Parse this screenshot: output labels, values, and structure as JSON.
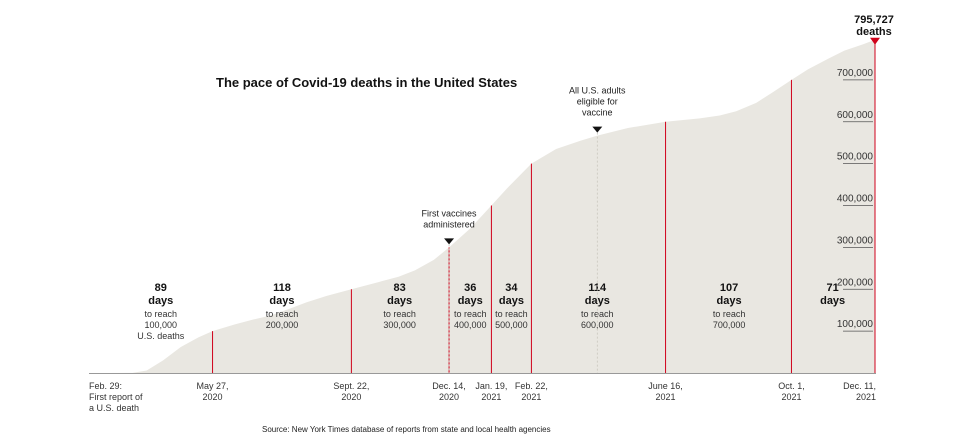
{
  "chart_data": {
    "type": "area",
    "title": "The pace of Covid-19 deaths in the United States",
    "source": "Source: New York Times database of reports from state and local health agencies",
    "x_domain": [
      "2020-02-29",
      "2021-12-11"
    ],
    "ylim": [
      0,
      800000
    ],
    "y_ticks": [
      {
        "value": 100000,
        "label": "100,000"
      },
      {
        "value": 200000,
        "label": "200,000"
      },
      {
        "value": 300000,
        "label": "300,000"
      },
      {
        "value": 400000,
        "label": "400,000"
      },
      {
        "value": 500000,
        "label": "500,000"
      },
      {
        "value": 600000,
        "label": "600,000"
      },
      {
        "value": 700000,
        "label": "700,000"
      }
    ],
    "series": [
      {
        "values": [
          {
            "x": "2020-02-29",
            "y": 0
          },
          {
            "x": "2020-03-20",
            "y": 300
          },
          {
            "x": "2020-04-01",
            "y": 6000
          },
          {
            "x": "2020-04-15",
            "y": 30000
          },
          {
            "x": "2020-04-30",
            "y": 62000
          },
          {
            "x": "2020-05-15",
            "y": 85000
          },
          {
            "x": "2020-05-27",
            "y": 100000
          },
          {
            "x": "2020-06-15",
            "y": 116000
          },
          {
            "x": "2020-07-01",
            "y": 128000
          },
          {
            "x": "2020-07-15",
            "y": 137000
          },
          {
            "x": "2020-08-01",
            "y": 154000
          },
          {
            "x": "2020-08-15",
            "y": 169000
          },
          {
            "x": "2020-09-01",
            "y": 184000
          },
          {
            "x": "2020-09-22",
            "y": 200000
          },
          {
            "x": "2020-10-15",
            "y": 217000
          },
          {
            "x": "2020-11-01",
            "y": 230000
          },
          {
            "x": "2020-11-15",
            "y": 245000
          },
          {
            "x": "2020-12-01",
            "y": 270000
          },
          {
            "x": "2020-12-14",
            "y": 300000
          },
          {
            "x": "2021-01-01",
            "y": 345000
          },
          {
            "x": "2021-01-19",
            "y": 400000
          },
          {
            "x": "2021-02-01",
            "y": 440000
          },
          {
            "x": "2021-02-22",
            "y": 500000
          },
          {
            "x": "2021-03-15",
            "y": 535000
          },
          {
            "x": "2021-04-05",
            "y": 555000
          },
          {
            "x": "2021-04-19",
            "y": 567000
          },
          {
            "x": "2021-05-15",
            "y": 585000
          },
          {
            "x": "2021-06-16",
            "y": 600000
          },
          {
            "x": "2021-07-15",
            "y": 608000
          },
          {
            "x": "2021-08-01",
            "y": 615000
          },
          {
            "x": "2021-08-15",
            "y": 625000
          },
          {
            "x": "2021-09-01",
            "y": 645000
          },
          {
            "x": "2021-09-15",
            "y": 670000
          },
          {
            "x": "2021-10-01",
            "y": 700000
          },
          {
            "x": "2021-10-15",
            "y": 725000
          },
          {
            "x": "2021-11-01",
            "y": 750000
          },
          {
            "x": "2021-11-15",
            "y": 770000
          },
          {
            "x": "2021-12-01",
            "y": 785000
          },
          {
            "x": "2021-12-11",
            "y": 795727
          }
        ]
      }
    ],
    "milestones": [
      {
        "date": "2020-02-29",
        "line": false,
        "date_label": [
          "Feb. 29:",
          "First report of",
          "a U.S. death"
        ]
      },
      {
        "date": "2020-05-27",
        "line": true,
        "value": 100000,
        "date_label": [
          "May 27,",
          "2020"
        ]
      },
      {
        "date": "2020-09-22",
        "line": true,
        "value": 200000,
        "date_label": [
          "Sept. 22,",
          "2020"
        ]
      },
      {
        "date": "2020-12-14",
        "line": true,
        "value": 300000,
        "date_label": [
          "Dec. 14,",
          "2020"
        ]
      },
      {
        "date": "2021-01-19",
        "line": true,
        "value": 400000,
        "date_label": [
          "Jan. 19,",
          "2021"
        ]
      },
      {
        "date": "2021-02-22",
        "line": true,
        "value": 500000,
        "date_label": [
          "Feb. 22,",
          "2021"
        ]
      },
      {
        "date": "2021-06-16",
        "line": true,
        "value": 600000,
        "date_label": [
          "June 16,",
          "2021"
        ]
      },
      {
        "date": "2021-10-01",
        "line": true,
        "value": 700000,
        "date_label": [
          "Oct. 1,",
          "2021"
        ]
      },
      {
        "date": "2021-12-11",
        "line": true,
        "value": 795727,
        "date_label": [
          "Dec. 11,",
          "2021"
        ]
      }
    ],
    "intervals": [
      {
        "days": "89",
        "days_word": "days",
        "sub": [
          "to reach",
          "100,000",
          "U.S. deaths"
        ],
        "center": "2020-04-13"
      },
      {
        "days": "118",
        "days_word": "days",
        "sub": [
          "to reach",
          "200,000"
        ],
        "center": "2020-07-25"
      },
      {
        "days": "83",
        "days_word": "days",
        "sub": [
          "to reach",
          "300,000"
        ],
        "center": "2020-11-02"
      },
      {
        "days": "36",
        "days_word": "days",
        "sub": [
          "to reach",
          "400,000"
        ],
        "center": "2021-01-01"
      },
      {
        "days": "34",
        "days_word": "days",
        "sub": [
          "to reach",
          "500,000"
        ],
        "center": "2021-02-05"
      },
      {
        "days": "114",
        "days_word": "days",
        "sub": [
          "to reach",
          "600,000"
        ],
        "center": "2021-04-19"
      },
      {
        "days": "107",
        "days_word": "days",
        "sub": [
          "to reach",
          "700,000"
        ],
        "center": "2021-08-09"
      },
      {
        "days": "71",
        "days_word": "days",
        "sub": [],
        "center": "2021-11-05"
      }
    ],
    "annotations": [
      {
        "date": "2020-12-14",
        "value": 300000,
        "lines": [
          "First vaccines",
          "administered"
        ]
      },
      {
        "date": "2021-04-19",
        "value": 567000,
        "lines": [
          "All U.S. adults",
          "eligible for",
          "vaccine"
        ]
      }
    ],
    "final_label": {
      "value_text": "795,727",
      "unit_text": "deaths"
    },
    "colors": {
      "area": "#e9e7e1",
      "milestone_line": "#d0021b",
      "marker": "#d0021b",
      "annotation": "#121212"
    }
  }
}
